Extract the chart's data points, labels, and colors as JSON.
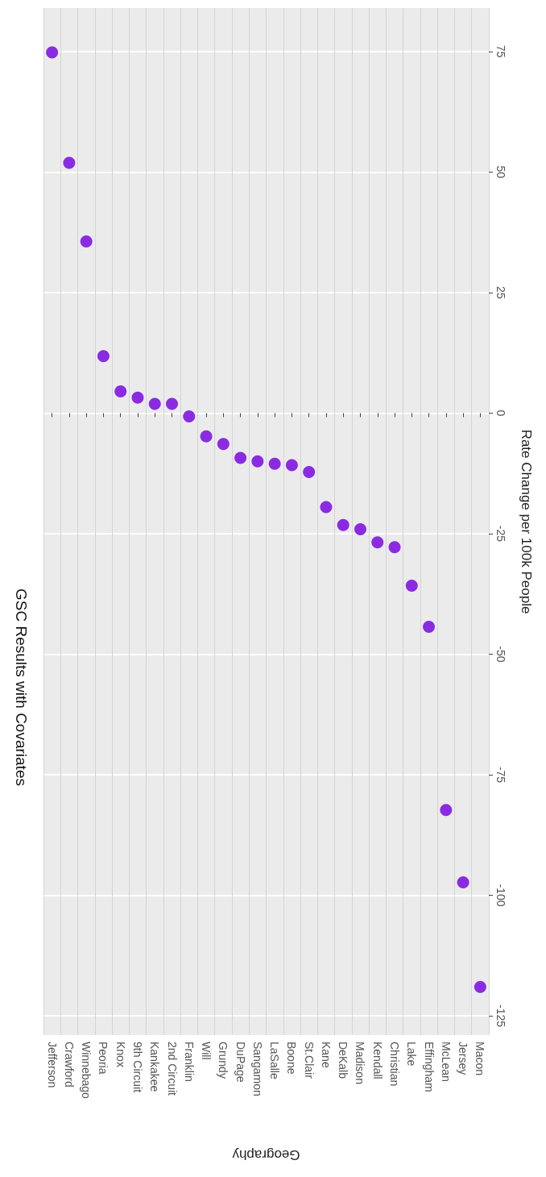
{
  "chart_data": {
    "type": "scatter",
    "title": "GSC Results with Covariates",
    "xlabel": "Geography",
    "ylabel": "Rate Change per 100k People",
    "categories": [
      "Jefferson",
      "Crawford",
      "Winnebago",
      "Peoria",
      "Knox",
      "9th Circuit",
      "Kankakee",
      "2nd Circuit",
      "Franklin",
      "Will",
      "Grundy",
      "DuPage",
      "Sangamon",
      "LaSalle",
      "Boone",
      "St.Clair",
      "Kane",
      "DeKalb",
      "Madison",
      "Kendall",
      "Christian",
      "Lake",
      "Effingham",
      "McLean",
      "Jersey",
      "Macon"
    ],
    "values": [
      74.8,
      51.9,
      35.6,
      11.8,
      4.5,
      3.2,
      1.9,
      1.9,
      -0.7,
      -4.8,
      -6.4,
      -9.3,
      -10,
      -10.5,
      -10.8,
      -12.2,
      -19.5,
      -23.2,
      -24.1,
      -26.8,
      -27.8,
      -35.8,
      -44.3,
      -82.3,
      -97.3,
      -119
    ],
    "color": "#8a2be2",
    "marker": "circle",
    "grid": true,
    "ylim": [
      -129,
      84
    ],
    "yticks": [
      -125,
      -100,
      -75,
      -50,
      -25,
      0,
      25,
      50,
      75
    ]
  }
}
